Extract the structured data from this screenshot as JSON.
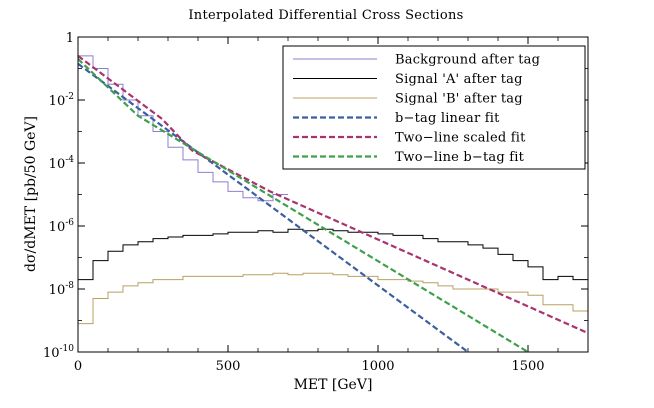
{
  "chart_data": {
    "type": "line",
    "title": "Interpolated Differential Cross Sections",
    "xlabel": "MET [GeV]",
    "ylabel": "dσ/dMET [pb/50 GeV]",
    "xlim": [
      0,
      1700
    ],
    "ylim_log10": [
      -10,
      0
    ],
    "yscale": "log",
    "legend_position": "top-right",
    "x_ticks": [
      {
        "value": 0,
        "label": "0"
      },
      {
        "value": 500,
        "label": "500"
      },
      {
        "value": 1000,
        "label": "1000"
      },
      {
        "value": 1500,
        "label": "1500"
      }
    ],
    "y_ticks": [
      {
        "exp": 0,
        "base": "1",
        "sup": ""
      },
      {
        "exp": -2,
        "base": "10",
        "sup": "-2"
      },
      {
        "exp": -4,
        "base": "10",
        "sup": "-4"
      },
      {
        "exp": -6,
        "base": "10",
        "sup": "-6"
      },
      {
        "exp": -8,
        "base": "10",
        "sup": "-8"
      },
      {
        "exp": -10,
        "base": "10",
        "sup": "-10"
      }
    ],
    "series": [
      {
        "name": "Background after tag",
        "kind": "step",
        "color": "#8b7fd4",
        "dash": false,
        "bin_width": 50,
        "log10_values": [
          -0.6,
          -1.0,
          -1.5,
          -2.0,
          -2.5,
          -3.0,
          -3.5,
          -3.9,
          -4.3,
          -4.6,
          -4.9,
          -5.1,
          -5.2,
          -5.0
        ]
      },
      {
        "name": "Signal 'A' after tag",
        "kind": "step",
        "color": "#000000",
        "dash": false,
        "bin_width": 50,
        "log10_values": [
          -7.7,
          -7.1,
          -6.8,
          -6.6,
          -6.5,
          -6.4,
          -6.35,
          -6.3,
          -6.3,
          -6.25,
          -6.2,
          -6.2,
          -6.15,
          -6.2,
          -6.1,
          -6.15,
          -6.1,
          -6.15,
          -6.2,
          -6.2,
          -6.25,
          -6.3,
          -6.3,
          -6.4,
          -6.5,
          -6.5,
          -6.6,
          -6.7,
          -6.9,
          -7.1,
          -7.3,
          -7.7,
          -7.6,
          -7.7
        ]
      },
      {
        "name": "Signal 'B' after tag",
        "kind": "step",
        "color": "#b8a060",
        "dash": false,
        "bin_width": 50,
        "log10_values": [
          -9.1,
          -8.3,
          -8.1,
          -7.9,
          -7.8,
          -7.7,
          -7.7,
          -7.6,
          -7.6,
          -7.6,
          -7.6,
          -7.55,
          -7.55,
          -7.5,
          -7.55,
          -7.5,
          -7.5,
          -7.55,
          -7.6,
          -7.6,
          -7.7,
          -7.7,
          -7.75,
          -7.8,
          -7.9,
          -8.0,
          -8.0,
          -8.0,
          -8.1,
          -8.1,
          -8.2,
          -8.5,
          -8.5,
          -8.7
        ]
      },
      {
        "name": "b−tag linear fit",
        "kind": "line",
        "color": "#3b5fa0",
        "dash": true,
        "x": [
          0,
          1300
        ],
        "log10_values": [
          -0.85,
          -10.0
        ]
      },
      {
        "name": "Two−line scaled fit",
        "kind": "line",
        "color": "#a8336e",
        "dash": true,
        "x": [
          0,
          280,
          380,
          640,
          1700
        ],
        "log10_values": [
          -0.6,
          -2.6,
          -3.6,
          -4.9,
          -9.4
        ]
      },
      {
        "name": "Two−line b−tag fit",
        "kind": "line",
        "color": "#3fa04a",
        "dash": true,
        "x": [
          0,
          200,
          1500
        ],
        "log10_values": [
          -0.7,
          -2.5,
          -10.0
        ]
      }
    ]
  }
}
